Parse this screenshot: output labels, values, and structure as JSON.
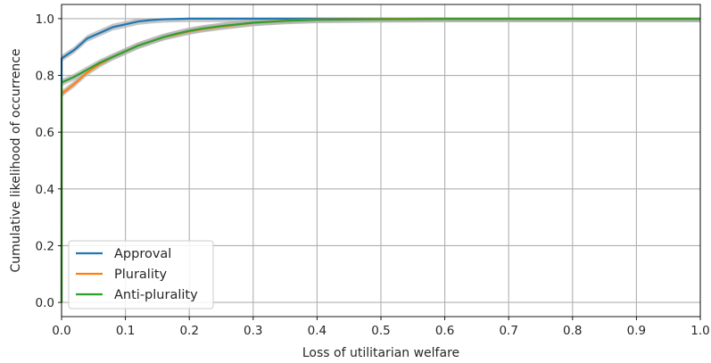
{
  "chart_data": {
    "type": "line",
    "xlabel": "Loss of utilitarian welfare",
    "ylabel": "Cumulative likelihood of occurrence",
    "xlim": [
      0.0,
      1.0
    ],
    "ylim": [
      -0.05,
      1.05
    ],
    "grid": true,
    "legend_position": "lower-left",
    "x_ticks": [
      0.0,
      0.1,
      0.2,
      0.3,
      0.4,
      0.5,
      0.6,
      0.7,
      0.8,
      0.9,
      1.0
    ],
    "x_tick_labels": [
      "0.0",
      "0.1",
      "0.2",
      "0.3",
      "0.4",
      "0.5",
      "0.6",
      "0.7",
      "0.8",
      "0.9",
      "1.0"
    ],
    "y_ticks": [
      0.0,
      0.2,
      0.4,
      0.6,
      0.8,
      1.0
    ],
    "y_tick_labels": [
      "0.0",
      "0.2",
      "0.4",
      "0.6",
      "0.8",
      "1.0"
    ],
    "series": [
      {
        "name": "Approval",
        "color": "#1f77b4",
        "x": [
          0,
          0.0001,
          0.02,
          0.04,
          0.06,
          0.08,
          0.1,
          0.12,
          0.14,
          0.16,
          0.18,
          0.2,
          0.25,
          0.3,
          0.4,
          0.5,
          0.6,
          0.7,
          0.8,
          0.9,
          1.0
        ],
        "y": [
          0.0,
          0.86,
          0.89,
          0.93,
          0.95,
          0.97,
          0.98,
          0.99,
          0.995,
          0.998,
          0.999,
          1.0,
          1.0,
          1.0,
          1.0,
          1.0,
          1.0,
          1.0,
          1.0,
          1.0,
          1.0
        ]
      },
      {
        "name": "Plurality",
        "color": "#ff7f0e",
        "x": [
          0,
          0.0001,
          0.02,
          0.04,
          0.06,
          0.08,
          0.1,
          0.12,
          0.14,
          0.16,
          0.18,
          0.2,
          0.22,
          0.25,
          0.28,
          0.3,
          0.35,
          0.4,
          0.5,
          0.6,
          0.7,
          0.8,
          0.9,
          1.0
        ],
        "y": [
          0.0,
          0.735,
          0.77,
          0.81,
          0.84,
          0.865,
          0.885,
          0.905,
          0.92,
          0.935,
          0.945,
          0.955,
          0.963,
          0.972,
          0.98,
          0.985,
          0.993,
          0.997,
          0.999,
          1.0,
          1.0,
          1.0,
          1.0,
          1.0
        ]
      },
      {
        "name": "Anti-plurality",
        "color": "#2ca02c",
        "x": [
          0,
          0.0001,
          0.02,
          0.04,
          0.06,
          0.08,
          0.1,
          0.12,
          0.14,
          0.16,
          0.18,
          0.2,
          0.22,
          0.25,
          0.28,
          0.3,
          0.35,
          0.4,
          0.5,
          0.6,
          0.7,
          0.8,
          0.9,
          1.0
        ],
        "y": [
          0.0,
          0.775,
          0.795,
          0.82,
          0.845,
          0.865,
          0.885,
          0.905,
          0.92,
          0.935,
          0.947,
          0.957,
          0.965,
          0.974,
          0.981,
          0.986,
          0.992,
          0.996,
          0.998,
          0.999,
          0.999,
          0.999,
          0.999,
          0.999
        ]
      }
    ],
    "confidence_band_color": "#b3b3b3"
  }
}
